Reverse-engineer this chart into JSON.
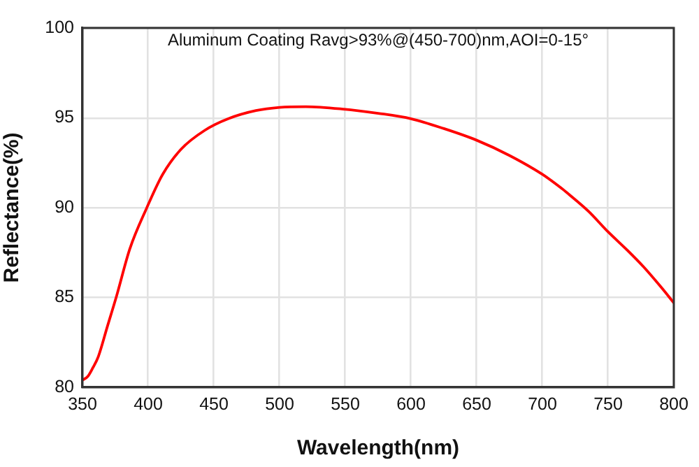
{
  "chart_data": {
    "type": "line",
    "title": "Aluminum Coating Ravg>93%@(450-700)nm,AOI=0-15°",
    "xlabel": "Wavelength(nm)",
    "ylabel": "Reflectance(%)",
    "x": [
      350,
      354,
      358,
      362,
      369,
      376,
      386,
      399,
      411,
      425,
      443,
      461,
      482,
      500,
      520,
      550,
      575,
      600,
      625,
      650,
      675,
      700,
      715,
      720,
      735,
      750,
      765,
      777,
      790,
      800
    ],
    "series": [
      {
        "color": "#ff0000",
        "values": [
          80.4,
          80.6,
          81.1,
          81.7,
          83.4,
          85.1,
          87.7,
          90.0,
          91.85,
          93.25,
          94.3,
          94.95,
          95.4,
          95.58,
          95.62,
          95.47,
          95.25,
          94.95,
          94.4,
          93.75,
          92.9,
          91.85,
          91.05,
          90.75,
          89.8,
          88.65,
          87.6,
          86.7,
          85.6,
          84.7
        ]
      }
    ],
    "xlim": [
      350,
      800
    ],
    "ylim": [
      80,
      100
    ],
    "xticks": [
      350,
      400,
      450,
      500,
      550,
      600,
      650,
      700,
      750,
      800
    ],
    "yticks": [
      80,
      85,
      90,
      95,
      100
    ],
    "grid": true,
    "legend": false,
    "marker": "none",
    "line_style": "solid"
  }
}
